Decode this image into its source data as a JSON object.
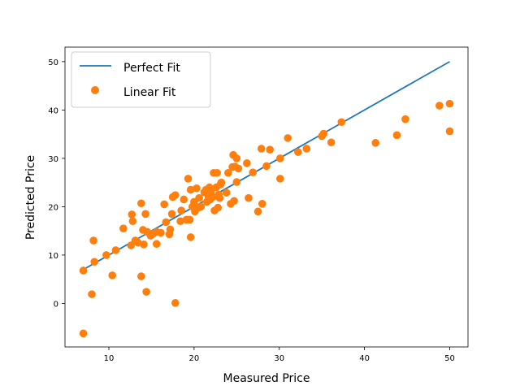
{
  "chart_data": {
    "type": "scatter",
    "title": "",
    "xlabel": "Measured Price",
    "ylabel": "Predicted Price",
    "xlim": [
      4.85,
      52.15
    ],
    "ylim": [
      -9.0,
      53.0
    ],
    "xticks": [
      10,
      20,
      30,
      40,
      50
    ],
    "yticks": [
      0,
      10,
      20,
      30,
      40,
      50
    ],
    "grid": false,
    "legend_position": "top-left",
    "series": [
      {
        "name": "Perfect Fit",
        "kind": "line",
        "color": "#1f77b4",
        "x": [
          7.0,
          50.0
        ],
        "y": [
          7.0,
          50.0
        ]
      },
      {
        "name": "Linear Fit",
        "kind": "scatter",
        "color": "#ff7f0e",
        "x": [
          7.0,
          7.0,
          8.0,
          8.2,
          8.3,
          9.7,
          10.4,
          10.8,
          11.7,
          12.6,
          12.7,
          12.8,
          13.1,
          13.4,
          13.8,
          13.8,
          14.0,
          14.1,
          14.3,
          14.4,
          14.5,
          14.9,
          15.2,
          15.6,
          15.6,
          16.1,
          16.5,
          16.7,
          17.1,
          17.2,
          17.4,
          17.5,
          17.8,
          17.8,
          18.4,
          18.5,
          18.8,
          19.1,
          19.3,
          19.5,
          19.6,
          19.6,
          19.8,
          20.0,
          20.1,
          20.2,
          20.3,
          20.5,
          20.6,
          20.8,
          21.2,
          21.4,
          21.5,
          21.7,
          21.7,
          21.8,
          21.9,
          22.0,
          22.2,
          22.3,
          22.4,
          22.6,
          22.7,
          22.8,
          22.9,
          23.0,
          23.1,
          23.2,
          23.8,
          24.0,
          24.3,
          24.5,
          24.6,
          24.7,
          24.8,
          25.0,
          25.0,
          25.2,
          26.2,
          26.4,
          26.9,
          27.5,
          27.9,
          28.0,
          28.5,
          28.9,
          30.1,
          30.1,
          31.0,
          32.2,
          33.2,
          35.0,
          35.2,
          36.1,
          37.3,
          41.3,
          43.8,
          44.8,
          48.8,
          50.0,
          50.0
        ],
        "y": [
          -6.2,
          6.8,
          1.9,
          13.0,
          8.6,
          10.0,
          5.8,
          11.0,
          15.5,
          12.0,
          18.4,
          17.0,
          13.0,
          12.6,
          20.7,
          5.6,
          15.2,
          12.2,
          18.5,
          2.4,
          14.8,
          14.0,
          14.4,
          12.3,
          14.8,
          14.6,
          20.5,
          16.8,
          14.3,
          15.3,
          18.5,
          22.0,
          22.4,
          0.1,
          17.0,
          19.2,
          21.5,
          17.3,
          25.8,
          17.3,
          13.7,
          23.5,
          20.0,
          21.0,
          19.0,
          19.7,
          23.8,
          19.8,
          21.8,
          20.0,
          23.0,
          23.5,
          21.0,
          22.0,
          23.0,
          24.0,
          21.5,
          23.0,
          22.0,
          27.0,
          19.2,
          24.0,
          27.0,
          19.8,
          22.5,
          21.8,
          24.6,
          25.0,
          22.9,
          27.0,
          20.6,
          28.2,
          30.7,
          21.2,
          28.3,
          30.0,
          25.1,
          27.9,
          29.0,
          21.8,
          27.1,
          19.0,
          32.0,
          20.6,
          28.4,
          31.8,
          30.0,
          25.8,
          34.2,
          31.3,
          32.0,
          34.6,
          35.1,
          33.3,
          37.5,
          33.2,
          34.8,
          38.1,
          40.9,
          41.3,
          35.6
        ]
      }
    ]
  }
}
